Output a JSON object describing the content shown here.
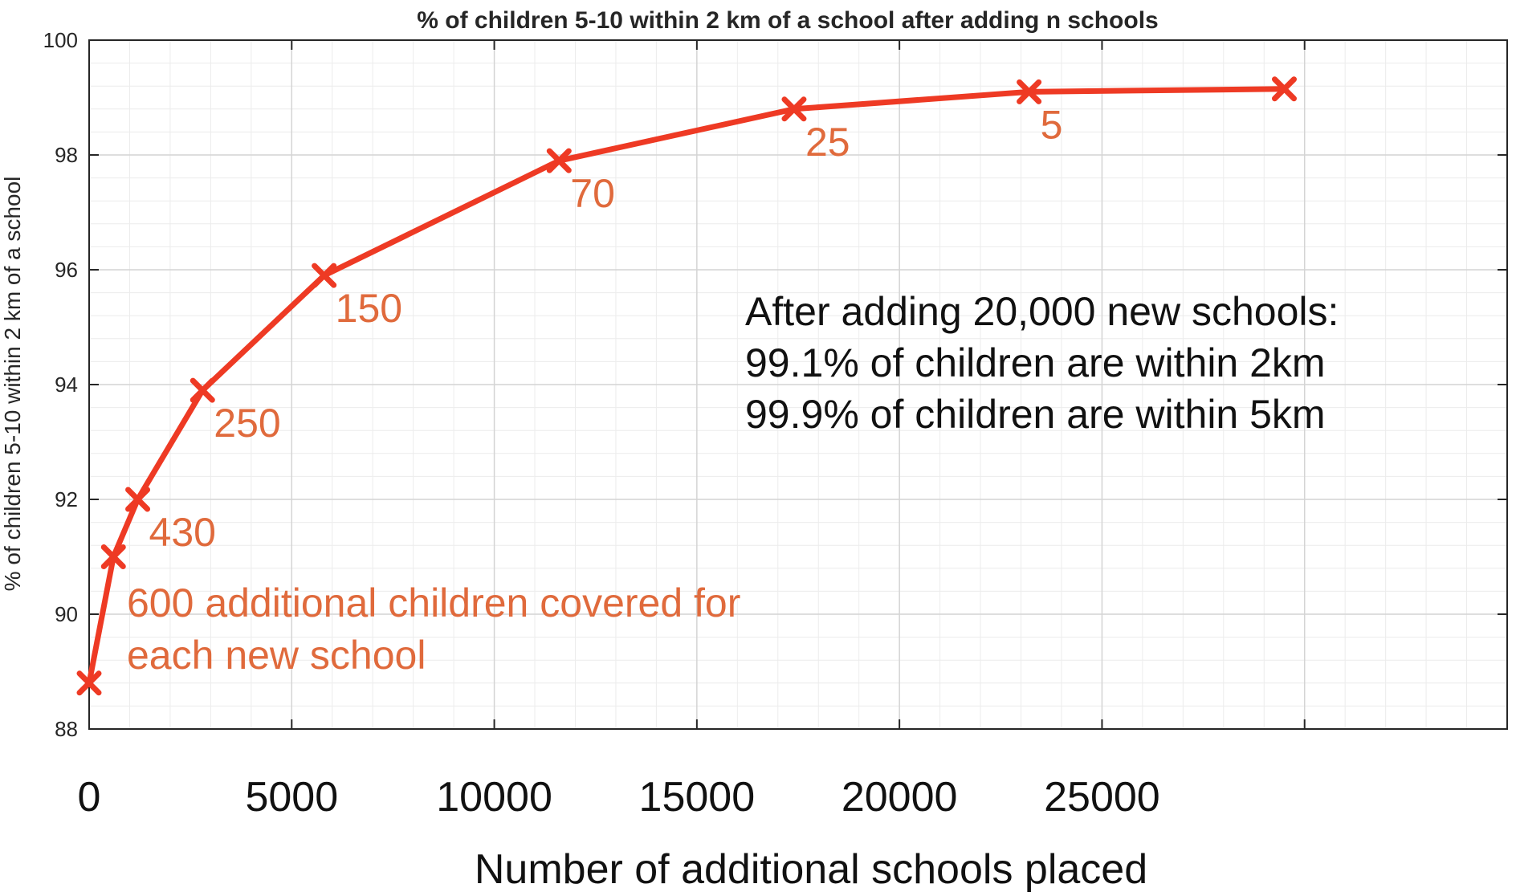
{
  "colors": {
    "series": "#ee3a24",
    "label": "#e06a3c",
    "grid_major": "#d4d4d4",
    "grid_minor": "#ececec",
    "axis": "#262626"
  },
  "chart_data": {
    "type": "line",
    "title": "% of children 5-10 within 2 km of a school after adding n schools",
    "xlabel": "Number of additional schools placed",
    "ylabel": "% of children 5-10 within 2 km of a school",
    "xlim": [
      0,
      35000
    ],
    "ylim": [
      88,
      100
    ],
    "grid": true,
    "marker": "x",
    "x_ticks": [
      0,
      5000,
      10000,
      15000,
      20000,
      25000
    ],
    "y_ticks": [
      88,
      90,
      92,
      94,
      96,
      98,
      100
    ],
    "series": [
      {
        "x": [
          0,
          600,
          1200,
          2800,
          5800,
          11600,
          17400,
          23200,
          29500
        ],
        "y": [
          88.8,
          91.0,
          92.0,
          93.9,
          95.9,
          97.9,
          98.8,
          99.1,
          99.15
        ]
      }
    ],
    "point_labels": [
      {
        "point": 2,
        "text": "430"
      },
      {
        "point": 3,
        "text": "250"
      },
      {
        "point": 4,
        "text": "150"
      },
      {
        "point": 5,
        "text": "70"
      },
      {
        "point": 6,
        "text": "25"
      },
      {
        "point": 7,
        "text": "5"
      }
    ],
    "annotations": {
      "coverage": [
        "600 additional children covered for",
        "each new school"
      ],
      "summary": [
        "After adding 20,000 new schools:",
        "99.1% of children are within 2km",
        "99.9% of children are within 5km"
      ]
    }
  }
}
